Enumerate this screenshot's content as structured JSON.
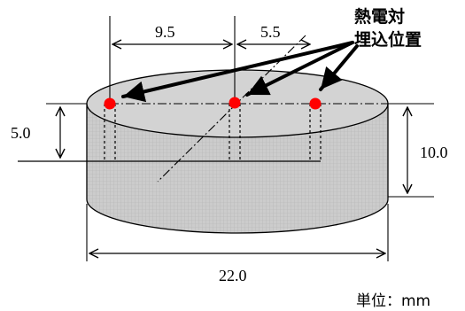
{
  "diagram": {
    "label_lines": [
      "熱電対",
      "埋込位置"
    ],
    "dimensions": {
      "spacing_left": "9.5",
      "spacing_right": "5.5",
      "embed_depth": "5.0",
      "height": "10.0",
      "diameter": "22.0"
    },
    "unit_note": "単位：mm",
    "colors": {
      "body_fill": "#c8c8c8",
      "top_fill": "#d3d3d3",
      "grid_line": "#bdbdbd",
      "thermocouple": "#ff0000",
      "line": "#000000"
    }
  }
}
